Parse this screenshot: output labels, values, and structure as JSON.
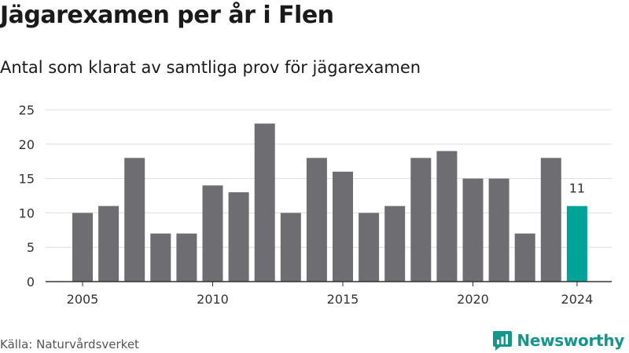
{
  "title": "Jägarexamen per år i Flen",
  "subtitle": "Antal som klarat av samtliga prov för jägarexamen",
  "source": "Källa: Naturvårdsverket",
  "brand": {
    "name": "Newsworthy",
    "icon": "newsworthy-logo-icon",
    "color": "#14958d"
  },
  "colors": {
    "bar": "#6d6d72",
    "highlight": "#00a398",
    "grid": "#dddddd",
    "axis": "#333333"
  },
  "chart_data": {
    "type": "bar",
    "title": "Jägarexamen per år i Flen",
    "subtitle": "Antal som klarat av samtliga prov för jägarexamen",
    "xlabel": "",
    "ylabel": "",
    "x": [
      2005,
      2006,
      2007,
      2008,
      2009,
      2010,
      2011,
      2012,
      2013,
      2014,
      2015,
      2016,
      2017,
      2018,
      2019,
      2020,
      2021,
      2022,
      2023,
      2024
    ],
    "values": [
      10,
      11,
      18,
      7,
      7,
      14,
      13,
      23,
      10,
      18,
      16,
      10,
      11,
      18,
      19,
      15,
      15,
      7,
      18,
      11
    ],
    "x_ticks": [
      2005,
      2010,
      2015,
      2020,
      2024
    ],
    "y_ticks": [
      0,
      5,
      10,
      15,
      20,
      25
    ],
    "ylim": [
      0,
      25
    ],
    "grid": true,
    "highlight": {
      "x": 2024,
      "label": "11"
    }
  }
}
